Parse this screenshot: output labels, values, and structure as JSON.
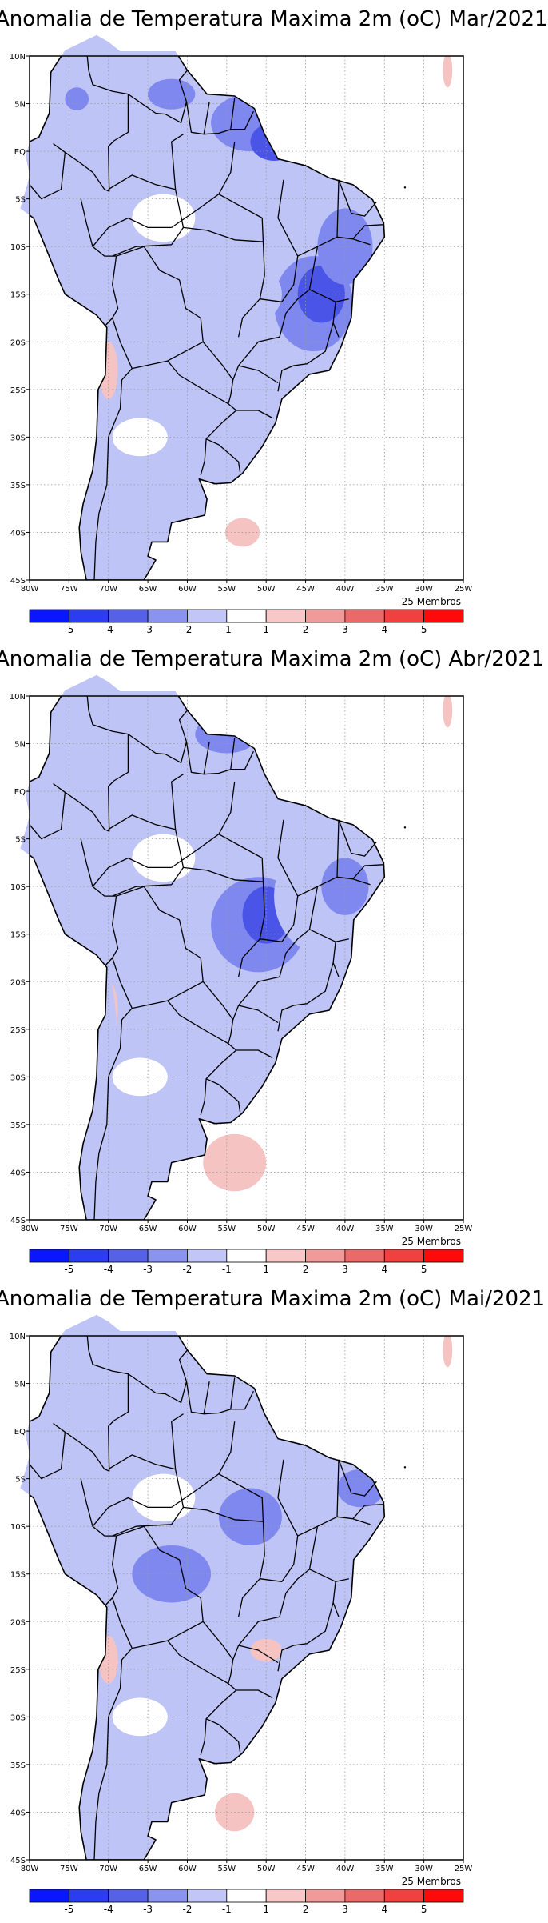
{
  "panels": [
    {
      "title": "Anomalia de Temperatura Maxima 2m (oC) Mar/2021",
      "members": "25 Membros"
    },
    {
      "title": "Anomalia de Temperatura Maxima 2m (oC) Abr/2021",
      "members": "25 Membros"
    },
    {
      "title": "Anomalia de Temperatura Maxima 2m (oC) Mai/2021",
      "members": "25 Membros"
    }
  ],
  "axes": {
    "lon_ticks": [
      "80W",
      "75W",
      "70W",
      "65W",
      "60W",
      "55W",
      "50W",
      "45W",
      "40W",
      "35W",
      "30W",
      "25W"
    ],
    "lat_ticks": [
      "10N",
      "5N",
      "EQ",
      "5S",
      "10S",
      "15S",
      "20S",
      "25S",
      "30S",
      "35S",
      "40S",
      "45S"
    ],
    "lon_range": [
      -80,
      -25
    ],
    "lat_range": [
      -45,
      10
    ],
    "grid": true,
    "grid_style": "dotted"
  },
  "legend": {
    "labels": [
      "-5",
      "-4",
      "-3",
      "-2",
      "-1",
      "1",
      "2",
      "3",
      "4",
      "5"
    ],
    "colors": [
      "#0a16ff",
      "#2c3cf0",
      "#5562e6",
      "#8a93ee",
      "#c2c6f6",
      "#ffffff",
      "#f8c8c8",
      "#f19a9a",
      "#ea6a6a",
      "#f04040",
      "#ff0a0a"
    ]
  },
  "colors": {
    "strong_neg": "#4a55e8",
    "mid_neg": "#7f88ee",
    "weak_neg": "#bfc4f6",
    "weak_pos": "#f6c3c3",
    "mid_pos": "#ef9090",
    "boundaries": "#000000"
  }
}
